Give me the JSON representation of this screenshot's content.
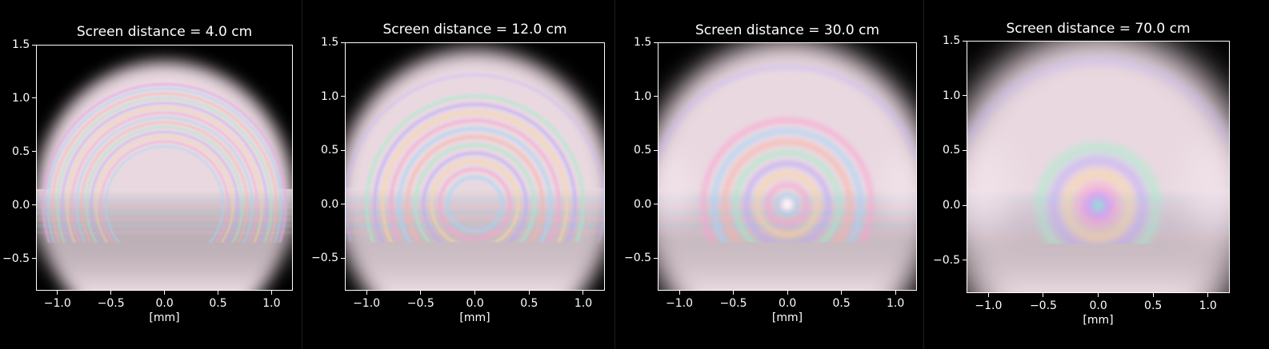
{
  "chart_data": [
    {
      "type": "heatmap",
      "title": "Screen distance = 4.0 cm",
      "xlabel": "[mm]",
      "ylabel": "",
      "xlim": [
        -1.2,
        1.2
      ],
      "ylim": [
        -0.8,
        1.5
      ],
      "xticks": [
        -1.0,
        -0.5,
        0.0,
        0.5,
        1.0
      ],
      "yticks": [
        -0.5,
        0.0,
        0.5,
        1.0,
        1.5
      ],
      "xtick_labels": [
        "−1.0",
        "−0.5",
        "0.0",
        "0.5",
        "1.0"
      ],
      "ytick_labels": [
        "−0.5",
        "0.0",
        "0.5",
        "1.0",
        "1.5"
      ]
    },
    {
      "type": "heatmap",
      "title": "Screen distance = 12.0 cm",
      "xlabel": "[mm]",
      "ylabel": "",
      "xlim": [
        -1.2,
        1.2
      ],
      "ylim": [
        -0.8,
        1.5
      ],
      "xticks": [
        -1.0,
        -0.5,
        0.0,
        0.5,
        1.0
      ],
      "yticks": [
        -0.5,
        0.0,
        0.5,
        1.0,
        1.5
      ],
      "xtick_labels": [
        "−1.0",
        "−0.5",
        "0.0",
        "0.5",
        "1.0"
      ],
      "ytick_labels": [
        "−0.5",
        "0.0",
        "0.5",
        "1.0",
        "1.5"
      ]
    },
    {
      "type": "heatmap",
      "title": "Screen distance = 30.0 cm",
      "xlabel": "[mm]",
      "ylabel": "",
      "xlim": [
        -1.2,
        1.2
      ],
      "ylim": [
        -0.8,
        1.5
      ],
      "xticks": [
        -1.0,
        -0.5,
        0.0,
        0.5,
        1.0
      ],
      "yticks": [
        -0.5,
        0.0,
        0.5,
        1.0,
        1.5
      ],
      "xtick_labels": [
        "−1.0",
        "−0.5",
        "0.0",
        "0.5",
        "1.0"
      ],
      "ytick_labels": [
        "−0.5",
        "0.0",
        "0.5",
        "1.0",
        "1.5"
      ]
    },
    {
      "type": "heatmap",
      "title": "Screen distance = 70.0 cm",
      "xlabel": "[mm]",
      "ylabel": "",
      "xlim": [
        -1.2,
        1.2
      ],
      "ylim": [
        -0.8,
        1.5
      ],
      "xticks": [
        -1.0,
        -0.5,
        0.0,
        0.5,
        1.0
      ],
      "yticks": [
        -0.5,
        0.0,
        0.5,
        1.0,
        1.5
      ],
      "xtick_labels": [
        "−1.0",
        "−0.5",
        "0.0",
        "0.5",
        "1.0"
      ],
      "ytick_labels": [
        "−0.5",
        "0.0",
        "0.5",
        "1.0",
        "1.5"
      ]
    }
  ]
}
